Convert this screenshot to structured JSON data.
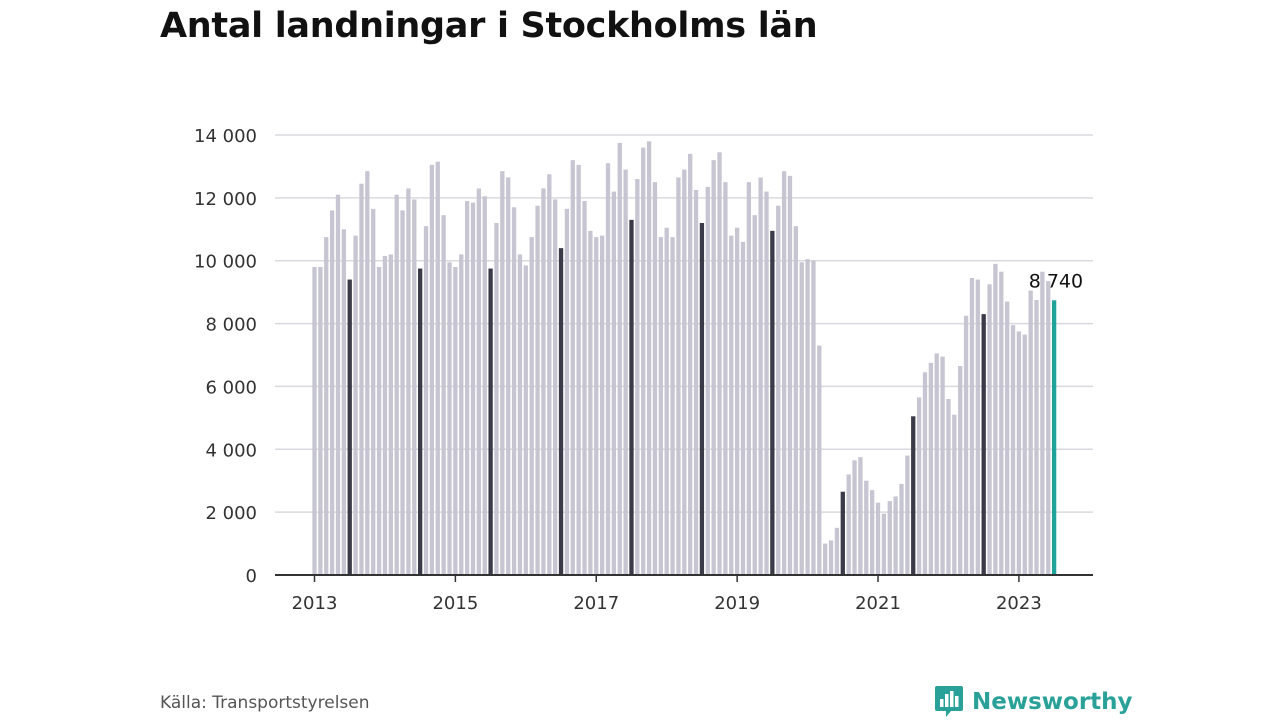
{
  "chart_title": "Antal landningar i Stockholms län",
  "source": "Källa: Transportstyrelsen",
  "brand": {
    "name": "Newsworthy",
    "icon": "newsworthy-logo-icon"
  },
  "colors": {
    "bar": "#c6c5d1",
    "bar_highlight_july": "#3a3a48",
    "bar_latest": "#1fa39a",
    "grid": "#d9d9df",
    "axis": "#333333",
    "brand": "#2aa198"
  },
  "chart_data": {
    "type": "bar",
    "title": "Antal landningar i Stockholms län",
    "xlabel": "",
    "ylabel": "",
    "ylim": [
      0,
      14000
    ],
    "yticks": [
      0,
      2000,
      4000,
      6000,
      8000,
      10000,
      12000,
      14000
    ],
    "ytick_labels": [
      "0",
      "2 000",
      "4 000",
      "6 000",
      "8 000",
      "10 000",
      "12 000",
      "14 000"
    ],
    "xtick_labels": [
      "2013",
      "2015",
      "2017",
      "2019",
      "2021",
      "2023"
    ],
    "grid": true,
    "start": "2013-01",
    "highlight": "July of each year in dark; latest month in teal",
    "latest_label": "8 740",
    "x": [
      "2013-01",
      "2013-02",
      "2013-03",
      "2013-04",
      "2013-05",
      "2013-06",
      "2013-07",
      "2013-08",
      "2013-09",
      "2013-10",
      "2013-11",
      "2013-12",
      "2014-01",
      "2014-02",
      "2014-03",
      "2014-04",
      "2014-05",
      "2014-06",
      "2014-07",
      "2014-08",
      "2014-09",
      "2014-10",
      "2014-11",
      "2014-12",
      "2015-01",
      "2015-02",
      "2015-03",
      "2015-04",
      "2015-05",
      "2015-06",
      "2015-07",
      "2015-08",
      "2015-09",
      "2015-10",
      "2015-11",
      "2015-12",
      "2016-01",
      "2016-02",
      "2016-03",
      "2016-04",
      "2016-05",
      "2016-06",
      "2016-07",
      "2016-08",
      "2016-09",
      "2016-10",
      "2016-11",
      "2016-12",
      "2017-01",
      "2017-02",
      "2017-03",
      "2017-04",
      "2017-05",
      "2017-06",
      "2017-07",
      "2017-08",
      "2017-09",
      "2017-10",
      "2017-11",
      "2017-12",
      "2018-01",
      "2018-02",
      "2018-03",
      "2018-04",
      "2018-05",
      "2018-06",
      "2018-07",
      "2018-08",
      "2018-09",
      "2018-10",
      "2018-11",
      "2018-12",
      "2019-01",
      "2019-02",
      "2019-03",
      "2019-04",
      "2019-05",
      "2019-06",
      "2019-07",
      "2019-08",
      "2019-09",
      "2019-10",
      "2019-11",
      "2019-12",
      "2020-01",
      "2020-02",
      "2020-03",
      "2020-04",
      "2020-05",
      "2020-06",
      "2020-07",
      "2020-08",
      "2020-09",
      "2020-10",
      "2020-11",
      "2020-12",
      "2021-01",
      "2021-02",
      "2021-03",
      "2021-04",
      "2021-05",
      "2021-06",
      "2021-07",
      "2021-08",
      "2021-09",
      "2021-10",
      "2021-11",
      "2021-12",
      "2022-01",
      "2022-02",
      "2022-03",
      "2022-04",
      "2022-05",
      "2022-06",
      "2022-07",
      "2022-08",
      "2022-09",
      "2022-10",
      "2022-11",
      "2022-12",
      "2023-01",
      "2023-02",
      "2023-03",
      "2023-04",
      "2023-05",
      "2023-06",
      "2023-07"
    ],
    "values": [
      9800,
      9800,
      10750,
      11600,
      12100,
      11000,
      9400,
      10800,
      12450,
      12850,
      11650,
      9800,
      10150,
      10200,
      12100,
      11600,
      12300,
      11950,
      9750,
      11100,
      13050,
      13150,
      11450,
      9950,
      9800,
      10200,
      11900,
      11850,
      12300,
      12050,
      9750,
      11200,
      12850,
      12650,
      11700,
      10200,
      9850,
      10750,
      11750,
      12300,
      12750,
      11950,
      10400,
      11650,
      13200,
      13050,
      11900,
      10950,
      10750,
      10800,
      13100,
      12200,
      13750,
      12900,
      11300,
      12600,
      13600,
      13800,
      12500,
      10750,
      11050,
      10750,
      12650,
      12900,
      13400,
      12250,
      11200,
      12350,
      13200,
      13450,
      12500,
      10800,
      11050,
      10600,
      12500,
      11450,
      12650,
      12200,
      10950,
      11750,
      12850,
      12700,
      11100,
      9950,
      10050,
      10000,
      7300,
      1000,
      1100,
      1500,
      2650,
      3200,
      3650,
      3750,
      3000,
      2700,
      2300,
      1950,
      2350,
      2500,
      2900,
      3800,
      5050,
      5650,
      6450,
      6750,
      7050,
      6950,
      5600,
      5100,
      6650,
      8250,
      9450,
      9400,
      8300,
      9250,
      9900,
      9650,
      8700,
      7950,
      7750,
      7650,
      9050,
      8750,
      9650,
      9350,
      8740
    ]
  }
}
